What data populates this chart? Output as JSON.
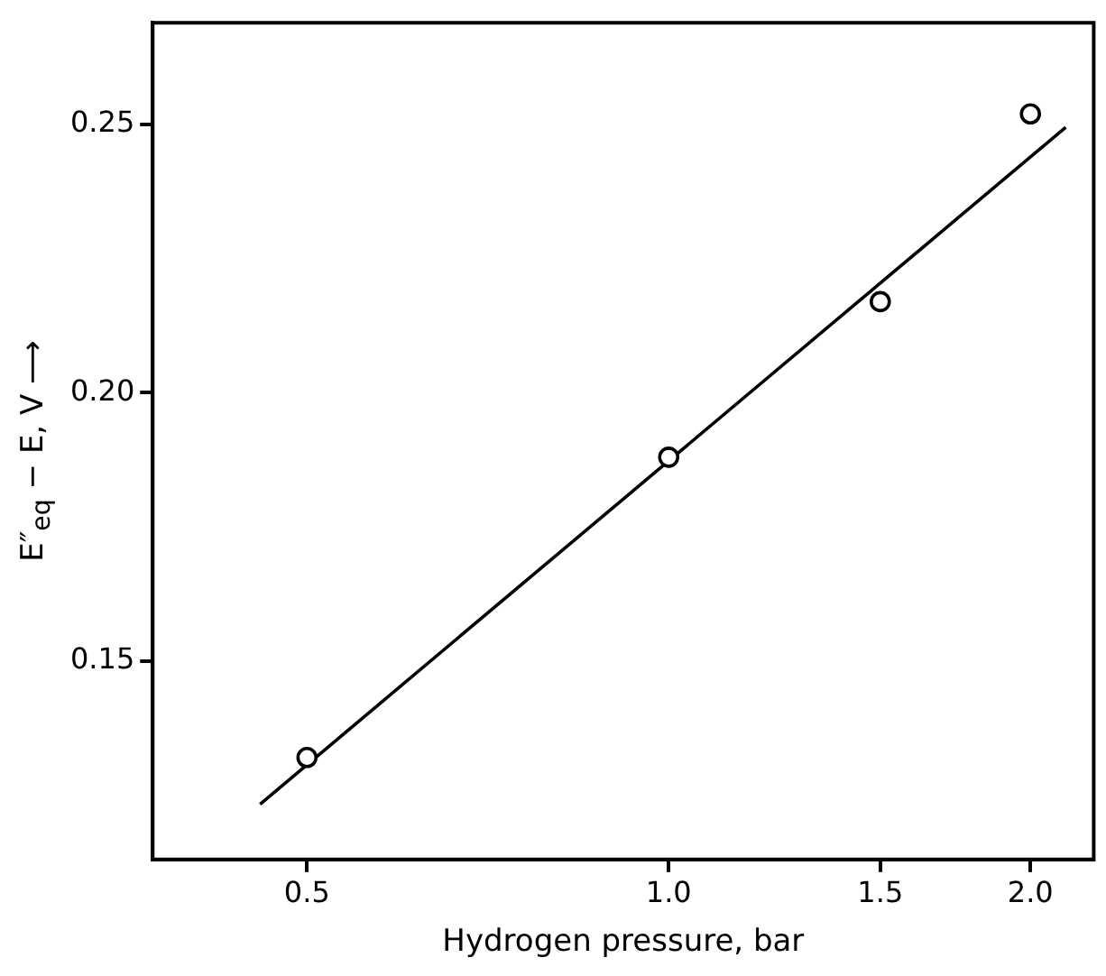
{
  "chart_data": {
    "type": "scatter",
    "xlabel": "Hydrogen pressure, bar",
    "ylabel": "E″$_{eq}$ − E, V ⟶",
    "log": "x",
    "grid": false,
    "legend": false,
    "marker": "circle",
    "xlim": [
      0.372,
      2.258
    ],
    "xticks": [
      0.5,
      {
        "value": 1,
        "label": "1.0"
      },
      1.5,
      {
        "value": 2,
        "label": "2.0"
      }
    ],
    "ylim": [
      0.113,
      0.269
    ],
    "yticks": [
      0.15,
      {
        "value": 0.2,
        "label": "0.20"
      },
      0.25
    ],
    "series": [
      {
        "color": "#000000",
        "x": [
          0.5,
          1.0,
          1.5,
          2.0
        ],
        "values": [
          0.132,
          0.188,
          0.217,
          0.252
        ]
      },
      {
        "type": "line",
        "color": "#000000",
        "marker": "none",
        "line_style": "solid",
        "x": [
          0.457,
          2.14
        ],
        "values": [
          0.1233,
          0.2495
        ]
      }
    ]
  }
}
